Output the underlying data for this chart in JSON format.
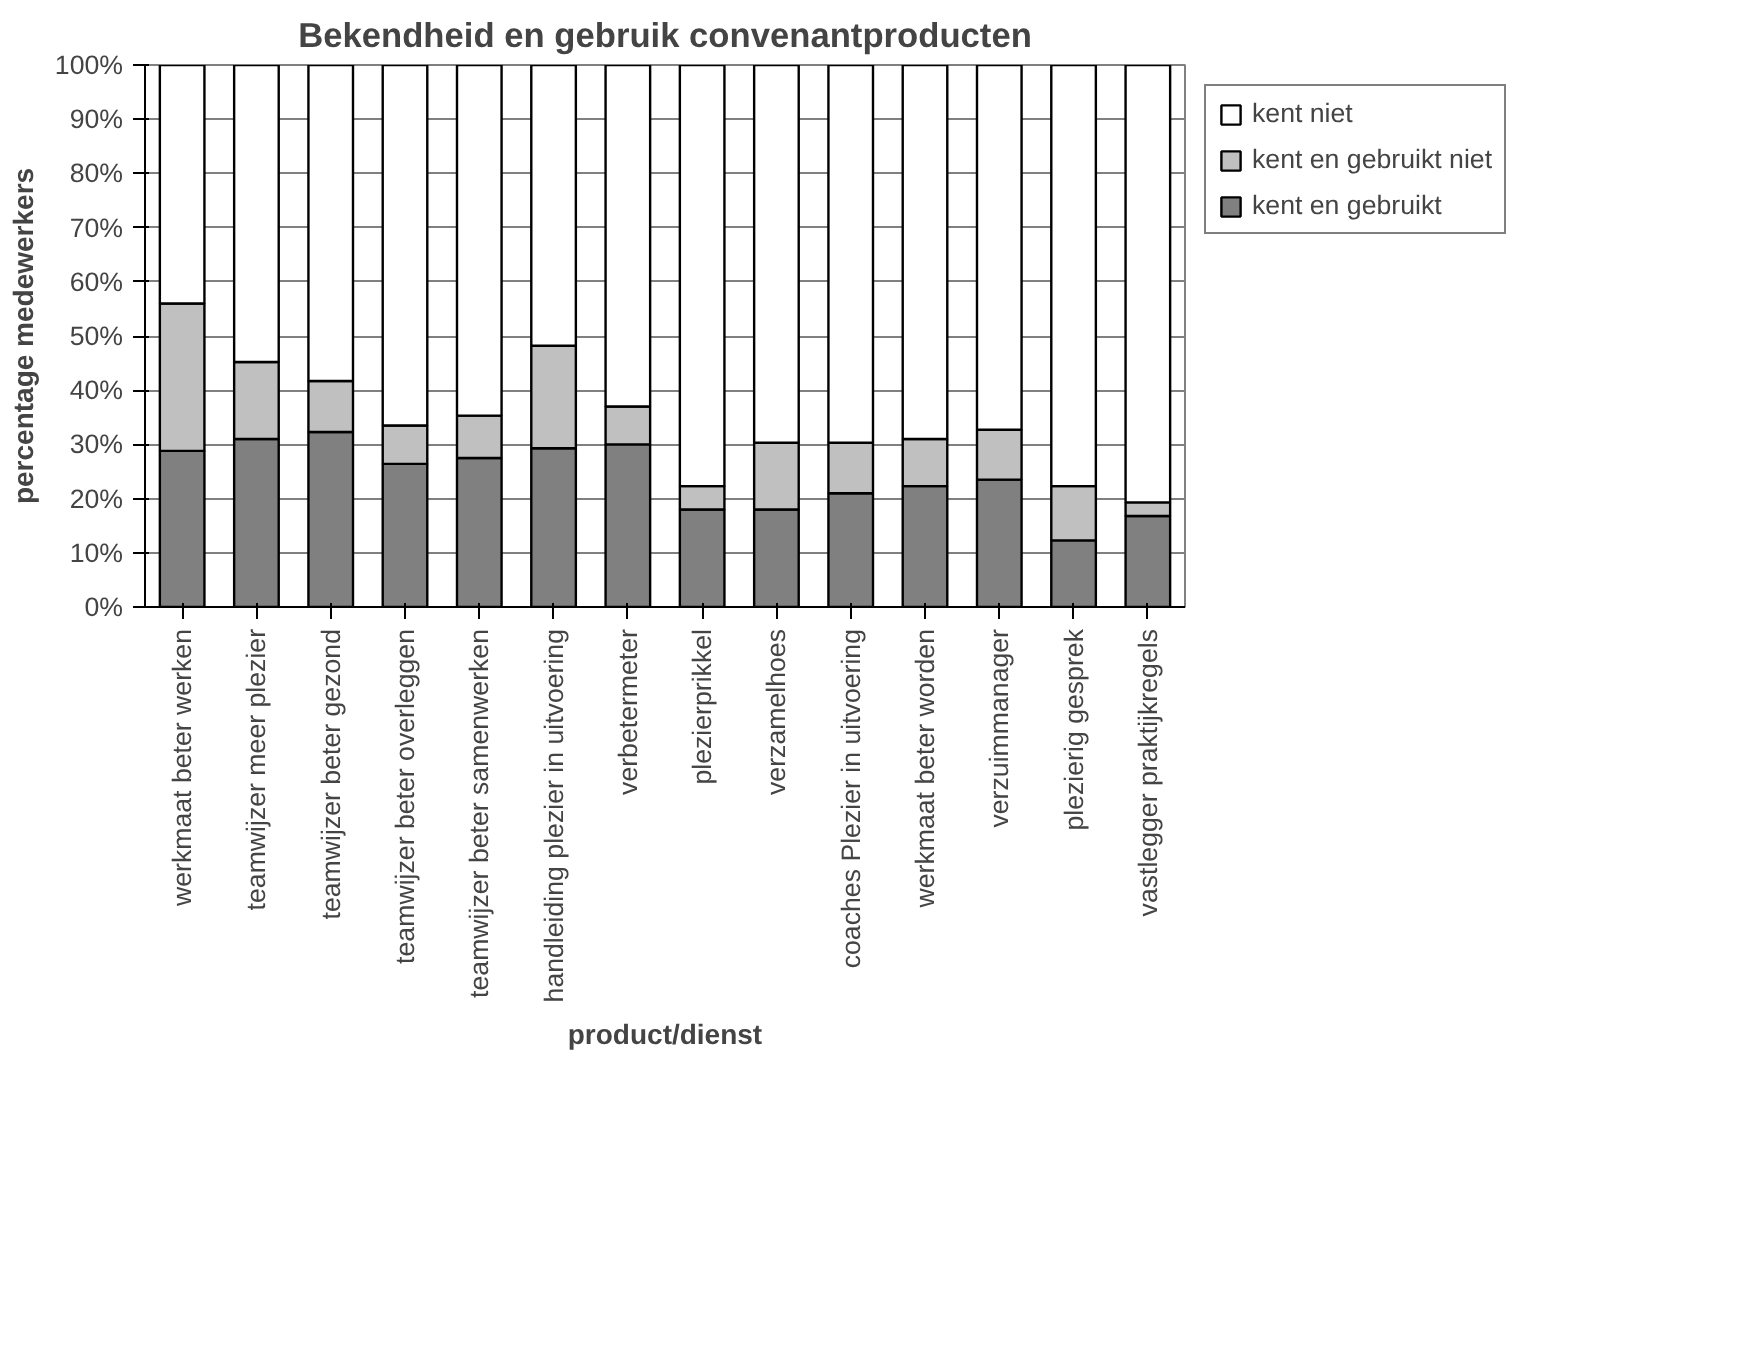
{
  "chart_data": {
    "type": "bar",
    "title": "Bekendheid en gebruik convenantproducten",
    "xlabel": "product/dienst",
    "ylabel": "percentage medewerkers",
    "categories": [
      "werkmaat beter werken",
      "teamwijzer meer plezier",
      "teamwijzer beter gezond",
      "teamwijzer beter overleggen",
      "teamwijzer beter samenwerken",
      "handleiding plezier in uitvoering",
      "verbetermeter",
      "plezierprikkel",
      "verzamelhoes",
      "coaches Plezier in uitvoering",
      "werkmaat beter worden",
      "verzuimmanager",
      "plezierig gesprek",
      "vastlegger praktijkregels"
    ],
    "stacked": true,
    "series": [
      {
        "name": "kent en gebruikt",
        "color": "#808080",
        "values": [
          28.8,
          31,
          32.3,
          26.4,
          27.5,
          29.3,
          30,
          18,
          18,
          21,
          22.3,
          23.5,
          12.3,
          16.8
        ]
      },
      {
        "name": "kent en gebruikt niet",
        "color": "#c0c0c0",
        "values": [
          27.2,
          14.2,
          9.4,
          7.1,
          7.8,
          18.9,
          7,
          4.3,
          12.3,
          9.3,
          8.7,
          9.2,
          10,
          2.5
        ]
      },
      {
        "name": "kent niet",
        "color": "#ffffff",
        "values": [
          44,
          54.8,
          58.3,
          66.5,
          64.7,
          51.8,
          63,
          77.7,
          69.7,
          69.7,
          69,
          67.3,
          77.7,
          80.7
        ]
      }
    ],
    "ylim": [
      0,
      100
    ],
    "yticks": [
      {
        "value": 0,
        "label": "0%"
      },
      {
        "value": 10,
        "label": "10%"
      },
      {
        "value": 20,
        "label": "20%"
      },
      {
        "value": 30,
        "label": "30%"
      },
      {
        "value": 40,
        "label": "40%"
      },
      {
        "value": 50,
        "label": "50%"
      },
      {
        "value": 60,
        "label": "60%"
      },
      {
        "value": 70,
        "label": "70%"
      },
      {
        "value": 80,
        "label": "80%"
      },
      {
        "value": 90,
        "label": "90%"
      },
      {
        "value": 100,
        "label": "100%"
      }
    ],
    "grid": "y",
    "legend": "right"
  }
}
